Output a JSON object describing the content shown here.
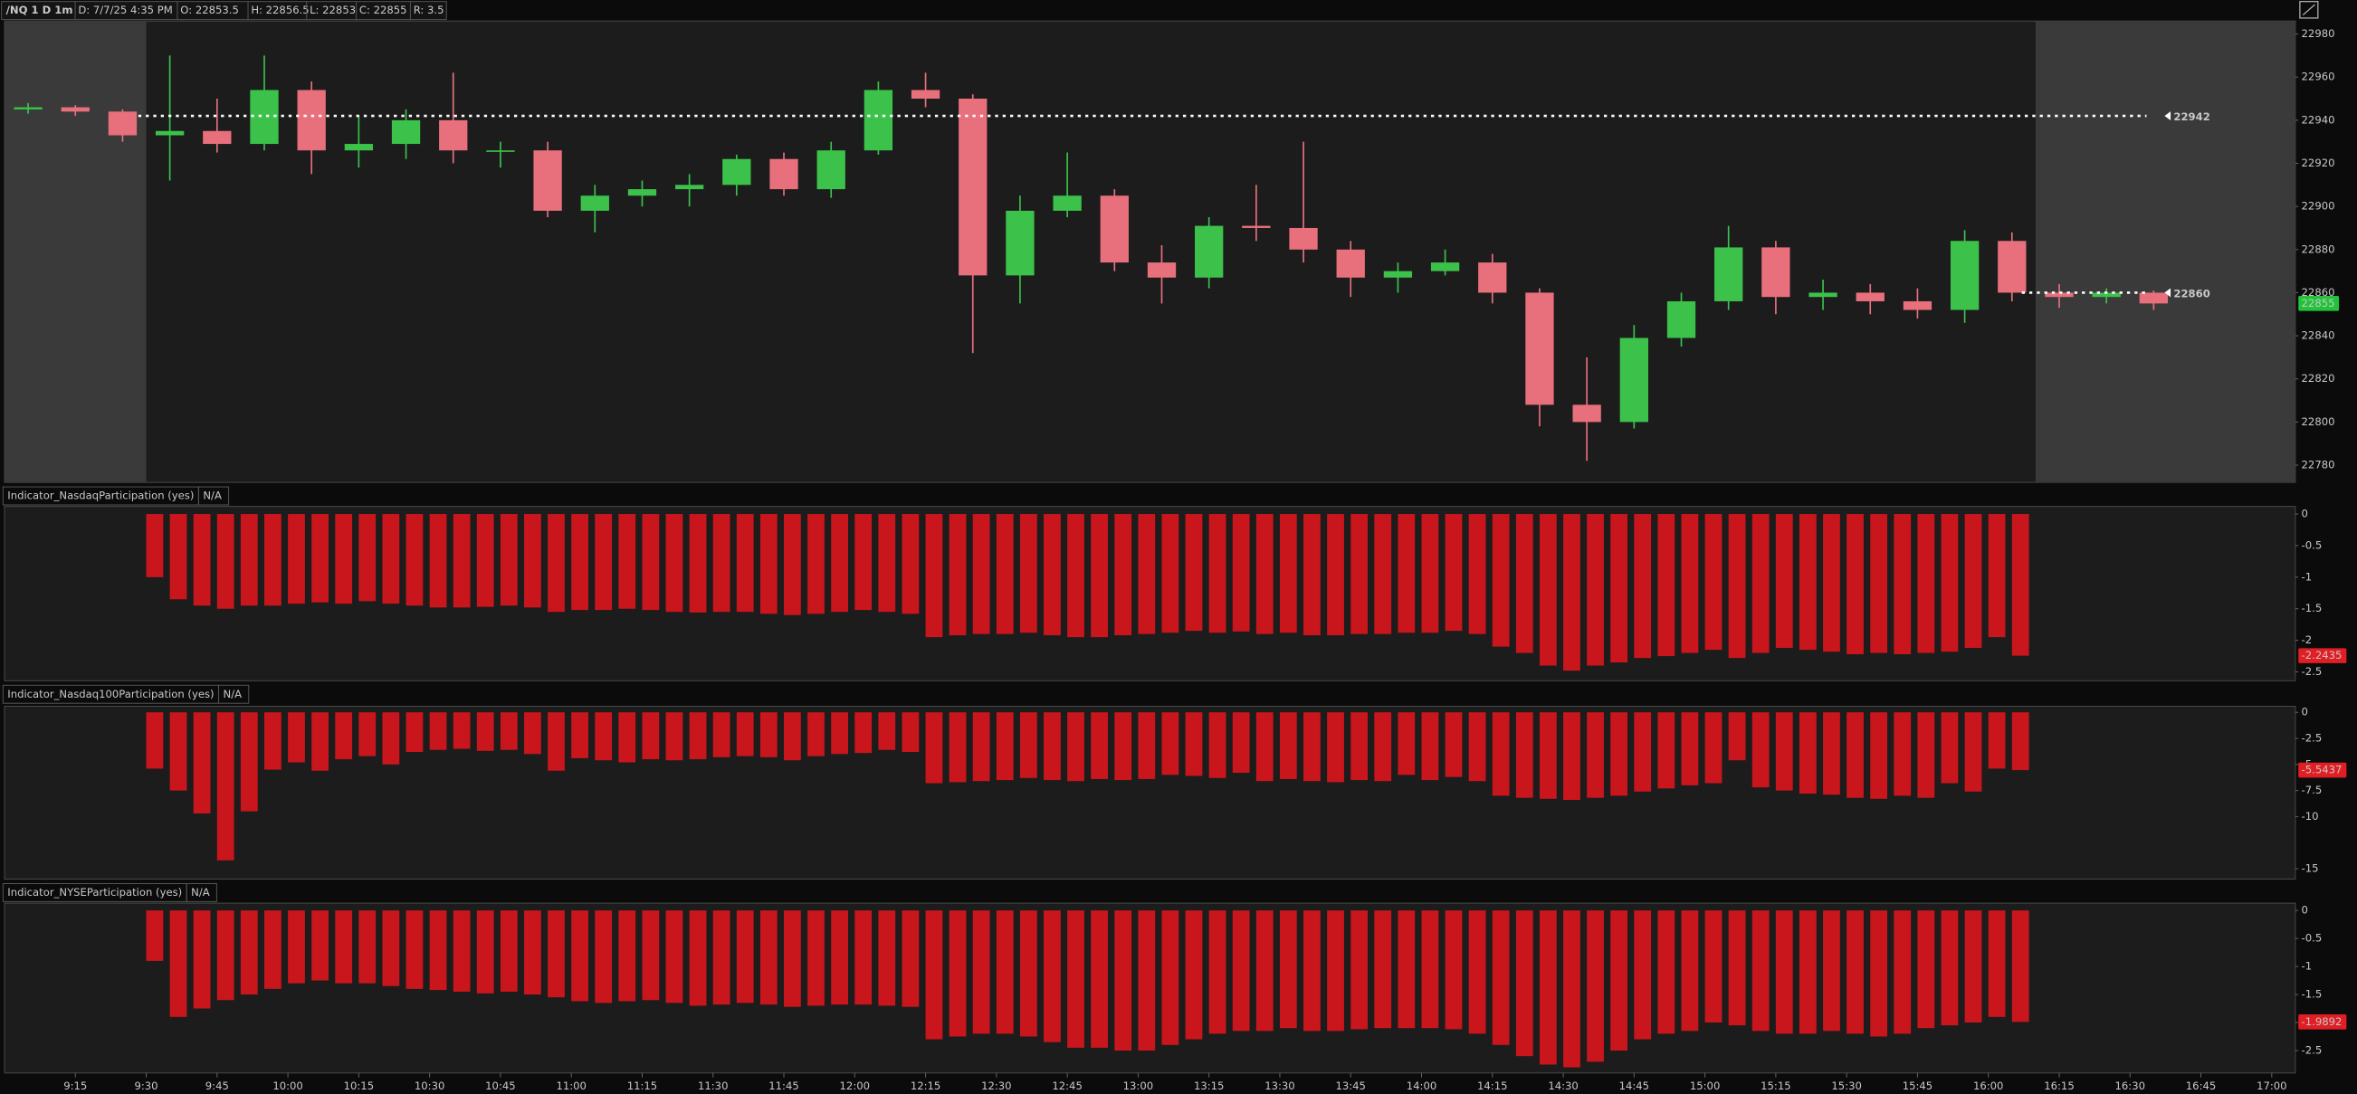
{
  "header": {
    "symbol": "/NQ 1 D 1m",
    "items": [
      "D: 7/7/25 4:35 PM",
      "O: 22853.5",
      "H: 22856.5",
      "L: 22853",
      "C: 22855",
      "R: 3.5"
    ]
  },
  "chart_data": [
    {
      "type": "candlestick",
      "x": [
        "9:00",
        "9:10",
        "9:20",
        "9:30",
        "9:40",
        "9:50",
        "10:00",
        "10:10",
        "10:20",
        "10:30",
        "10:40",
        "10:50",
        "11:00",
        "11:10",
        "11:20",
        "11:30",
        "11:40",
        "11:50",
        "12:00",
        "12:10",
        "12:20",
        "12:30",
        "12:40",
        "12:50",
        "13:00",
        "13:10",
        "13:20",
        "13:30",
        "13:40",
        "13:50",
        "14:00",
        "14:10",
        "14:20",
        "14:30",
        "14:40",
        "14:50",
        "15:00",
        "15:10",
        "15:20",
        "15:30",
        "15:40",
        "15:50",
        "16:00",
        "16:10",
        "16:20",
        "16:30"
      ],
      "open": [
        22945,
        22946,
        22944,
        22933,
        22935,
        22929,
        22954,
        22926,
        22929,
        22940,
        22926,
        22926,
        22898,
        22905,
        22908,
        22910,
        22922,
        22908,
        22926,
        22954,
        22950,
        22868,
        22898,
        22905,
        22874,
        22867,
        22891,
        22890,
        22880,
        22867,
        22870,
        22874,
        22860,
        22808,
        22800,
        22839,
        22856,
        22881,
        22858,
        22860,
        22856,
        22852,
        22884,
        22860,
        22858,
        22860
      ],
      "high": [
        22948,
        22947,
        22945,
        22970,
        22950,
        22970,
        22958,
        22942,
        22945,
        22962,
        22930,
        22930,
        22910,
        22912,
        22915,
        22924,
        22925,
        22930,
        22958,
        22962,
        22952,
        22905,
        22925,
        22908,
        22882,
        22895,
        22910,
        22930,
        22884,
        22874,
        22880,
        22878,
        22862,
        22830,
        22845,
        22860,
        22891,
        22884,
        22866,
        22864,
        22862,
        22889,
        22888,
        22864,
        22862,
        22861
      ],
      "low": [
        22943,
        22942,
        22930,
        22912,
        22925,
        22926,
        22915,
        22918,
        22922,
        22920,
        22918,
        22895,
        22888,
        22900,
        22900,
        22905,
        22905,
        22904,
        22924,
        22946,
        22832,
        22855,
        22895,
        22870,
        22855,
        22862,
        22884,
        22874,
        22858,
        22860,
        22868,
        22855,
        22798,
        22782,
        22797,
        22835,
        22852,
        22850,
        22852,
        22850,
        22848,
        22846,
        22856,
        22853,
        22855,
        22852
      ],
      "close": [
        22946,
        22944,
        22933,
        22935,
        22929,
        22954,
        22926,
        22929,
        22940,
        22926,
        22926,
        22898,
        22905,
        22908,
        22910,
        22922,
        22908,
        22926,
        22954,
        22950,
        22868,
        22898,
        22905,
        22874,
        22867,
        22891,
        22890,
        22880,
        22867,
        22870,
        22874,
        22860,
        22808,
        22800,
        22839,
        22856,
        22881,
        22858,
        22860,
        22856,
        22852,
        22884,
        22860,
        22858,
        22860,
        22855
      ],
      "up_color": "#3cc24a",
      "down_color": "#e8707c",
      "last_color": "#22c33a",
      "xlim": [
        "9:00",
        "17:05"
      ],
      "ylim": [
        22772,
        22986
      ],
      "yticks": [
        22780,
        22800,
        22820,
        22840,
        22860,
        22880,
        22900,
        22920,
        22940,
        22960,
        22980
      ],
      "levels": [
        22942,
        22860
      ],
      "shaded": [
        [
          "9:00",
          "9:30"
        ],
        [
          "16:10",
          "17:05"
        ]
      ]
    },
    {
      "type": "bar",
      "title": "Indicator_NasdaqParticipation (yes)",
      "status": "N/A",
      "color": "#c8161c",
      "x": [
        "9:30",
        "9:35",
        "9:40",
        "9:45",
        "9:50",
        "9:55",
        "10:00",
        "10:05",
        "10:10",
        "10:15",
        "10:20",
        "10:25",
        "10:30",
        "10:35",
        "10:40",
        "10:45",
        "10:50",
        "10:55",
        "11:00",
        "11:05",
        "11:10",
        "11:15",
        "11:20",
        "11:25",
        "11:30",
        "11:35",
        "11:40",
        "11:45",
        "11:50",
        "11:55",
        "12:00",
        "12:05",
        "12:10",
        "12:15",
        "12:20",
        "12:25",
        "12:30",
        "12:35",
        "12:40",
        "12:45",
        "12:50",
        "12:55",
        "13:00",
        "13:05",
        "13:10",
        "13:15",
        "13:20",
        "13:25",
        "13:30",
        "13:35",
        "13:40",
        "13:45",
        "13:50",
        "13:55",
        "14:00",
        "14:05",
        "14:10",
        "14:15",
        "14:20",
        "14:25",
        "14:30",
        "14:35",
        "14:40",
        "14:45",
        "14:50",
        "14:55",
        "15:00",
        "15:05",
        "15:10",
        "15:15",
        "15:20",
        "15:25",
        "15:30",
        "15:35",
        "15:40",
        "15:45",
        "15:50",
        "15:55",
        "16:00",
        "16:05"
      ],
      "values": [
        -1.0,
        -1.35,
        -1.45,
        -1.5,
        -1.45,
        -1.45,
        -1.42,
        -1.4,
        -1.42,
        -1.38,
        -1.42,
        -1.45,
        -1.48,
        -1.48,
        -1.47,
        -1.45,
        -1.48,
        -1.55,
        -1.52,
        -1.52,
        -1.5,
        -1.52,
        -1.55,
        -1.56,
        -1.55,
        -1.55,
        -1.58,
        -1.6,
        -1.58,
        -1.55,
        -1.52,
        -1.55,
        -1.58,
        -1.95,
        -1.92,
        -1.9,
        -1.9,
        -1.88,
        -1.92,
        -1.95,
        -1.95,
        -1.92,
        -1.9,
        -1.88,
        -1.85,
        -1.88,
        -1.86,
        -1.9,
        -1.88,
        -1.92,
        -1.92,
        -1.9,
        -1.9,
        -1.88,
        -1.88,
        -1.85,
        -1.9,
        -2.1,
        -2.2,
        -2.4,
        -2.48,
        -2.4,
        -2.35,
        -2.28,
        -2.25,
        -2.2,
        -2.15,
        -2.28,
        -2.2,
        -2.12,
        -2.15,
        -2.18,
        -2.22,
        -2.2,
        -2.22,
        -2.2,
        -2.18,
        -2.12,
        -1.95,
        -2.2435
      ],
      "xlim": [
        "9:00",
        "17:05"
      ],
      "ylim": [
        -2.64,
        0.12
      ],
      "yticks": [
        0,
        -0.5,
        -1,
        -1.5,
        -2,
        -2.5
      ]
    },
    {
      "type": "bar",
      "title": "Indicator_Nasdaq100Participation (yes)",
      "status": "N/A",
      "color": "#c8161c",
      "x": [
        "9:30",
        "9:35",
        "9:40",
        "9:45",
        "9:50",
        "9:55",
        "10:00",
        "10:05",
        "10:10",
        "10:15",
        "10:20",
        "10:25",
        "10:30",
        "10:35",
        "10:40",
        "10:45",
        "10:50",
        "10:55",
        "11:00",
        "11:05",
        "11:10",
        "11:15",
        "11:20",
        "11:25",
        "11:30",
        "11:35",
        "11:40",
        "11:45",
        "11:50",
        "11:55",
        "12:00",
        "12:05",
        "12:10",
        "12:15",
        "12:20",
        "12:25",
        "12:30",
        "12:35",
        "12:40",
        "12:45",
        "12:50",
        "12:55",
        "13:00",
        "13:05",
        "13:10",
        "13:15",
        "13:20",
        "13:25",
        "13:30",
        "13:35",
        "13:40",
        "13:45",
        "13:50",
        "13:55",
        "14:00",
        "14:05",
        "14:10",
        "14:15",
        "14:20",
        "14:25",
        "14:30",
        "14:35",
        "14:40",
        "14:45",
        "14:50",
        "14:55",
        "15:00",
        "15:05",
        "15:10",
        "15:15",
        "15:20",
        "15:25",
        "15:30",
        "15:35",
        "15:40",
        "15:45",
        "15:50",
        "15:55",
        "16:00",
        "16:05"
      ],
      "values": [
        -5.4,
        -7.5,
        -9.7,
        -14.2,
        -9.5,
        -5.5,
        -4.8,
        -5.6,
        -4.5,
        -4.2,
        -5.0,
        -3.8,
        -3.6,
        -3.5,
        -3.7,
        -3.6,
        -4.0,
        -5.6,
        -4.4,
        -4.6,
        -4.8,
        -4.5,
        -4.6,
        -4.5,
        -4.3,
        -4.2,
        -4.3,
        -4.6,
        -4.2,
        -4.0,
        -3.9,
        -3.6,
        -3.8,
        -6.8,
        -6.7,
        -6.6,
        -6.5,
        -6.3,
        -6.5,
        -6.6,
        -6.4,
        -6.5,
        -6.4,
        -6.0,
        -6.1,
        -6.3,
        -5.8,
        -6.6,
        -6.4,
        -6.6,
        -6.7,
        -6.5,
        -6.6,
        -6.0,
        -6.5,
        -6.2,
        -6.6,
        -8.0,
        -8.2,
        -8.3,
        -8.4,
        -8.2,
        -8.0,
        -7.6,
        -7.3,
        -7.0,
        -6.8,
        -4.6,
        -7.2,
        -7.5,
        -7.8,
        -7.9,
        -8.2,
        -8.3,
        -8.0,
        -8.2,
        -6.8,
        -7.6,
        -5.4,
        -5.5437
      ],
      "xlim": [
        "9:00",
        "17:05"
      ],
      "ylim": [
        -16.0,
        0.58
      ],
      "yticks": [
        0,
        -2.5,
        -5,
        -7.5,
        -10,
        -15
      ]
    },
    {
      "type": "bar",
      "title": "Indicator_NYSEParticipation (yes)",
      "status": "N/A",
      "color": "#c8161c",
      "x": [
        "9:30",
        "9:35",
        "9:40",
        "9:45",
        "9:50",
        "9:55",
        "10:00",
        "10:05",
        "10:10",
        "10:15",
        "10:20",
        "10:25",
        "10:30",
        "10:35",
        "10:40",
        "10:45",
        "10:50",
        "10:55",
        "11:00",
        "11:05",
        "11:10",
        "11:15",
        "11:20",
        "11:25",
        "11:30",
        "11:35",
        "11:40",
        "11:45",
        "11:50",
        "11:55",
        "12:00",
        "12:05",
        "12:10",
        "12:15",
        "12:20",
        "12:25",
        "12:30",
        "12:35",
        "12:40",
        "12:45",
        "12:50",
        "12:55",
        "13:00",
        "13:05",
        "13:10",
        "13:15",
        "13:20",
        "13:25",
        "13:30",
        "13:35",
        "13:40",
        "13:45",
        "13:50",
        "13:55",
        "14:00",
        "14:05",
        "14:10",
        "14:15",
        "14:20",
        "14:25",
        "14:30",
        "14:35",
        "14:40",
        "14:45",
        "14:50",
        "14:55",
        "15:00",
        "15:05",
        "15:10",
        "15:15",
        "15:20",
        "15:25",
        "15:30",
        "15:35",
        "15:40",
        "15:45",
        "15:50",
        "15:55",
        "16:00",
        "16:05"
      ],
      "values": [
        -0.9,
        -1.9,
        -1.75,
        -1.6,
        -1.5,
        -1.4,
        -1.3,
        -1.25,
        -1.3,
        -1.3,
        -1.35,
        -1.4,
        -1.42,
        -1.45,
        -1.48,
        -1.45,
        -1.5,
        -1.55,
        -1.62,
        -1.65,
        -1.62,
        -1.6,
        -1.65,
        -1.7,
        -1.68,
        -1.65,
        -1.68,
        -1.72,
        -1.7,
        -1.68,
        -1.68,
        -1.7,
        -1.72,
        -2.3,
        -2.25,
        -2.2,
        -2.2,
        -2.25,
        -2.35,
        -2.45,
        -2.45,
        -2.5,
        -2.5,
        -2.4,
        -2.3,
        -2.2,
        -2.15,
        -2.15,
        -2.1,
        -2.15,
        -2.15,
        -2.12,
        -2.1,
        -2.1,
        -2.1,
        -2.12,
        -2.2,
        -2.4,
        -2.6,
        -2.75,
        -2.8,
        -2.7,
        -2.5,
        -2.3,
        -2.2,
        -2.15,
        -2.0,
        -2.05,
        -2.15,
        -2.2,
        -2.2,
        -2.15,
        -2.2,
        -2.25,
        -2.2,
        -2.1,
        -2.05,
        -2.0,
        -1.9,
        -1.9892
      ],
      "xlim": [
        "9:00",
        "17:05"
      ],
      "ylim": [
        -2.9,
        0.13
      ],
      "yticks": [
        0,
        -0.5,
        -1,
        -1.5,
        -2,
        -2.5
      ],
      "xticks": [
        "9:15",
        "9:30",
        "9:45",
        "10:00",
        "10:15",
        "10:30",
        "10:45",
        "11:00",
        "11:15",
        "11:30",
        "11:45",
        "12:00",
        "12:15",
        "12:30",
        "12:45",
        "13:00",
        "13:15",
        "13:30",
        "13:45",
        "14:00",
        "14:15",
        "14:30",
        "14:45",
        "15:00",
        "15:15",
        "15:30",
        "15:45",
        "16:00",
        "16:15",
        "16:30",
        "16:45",
        "17:00"
      ]
    }
  ]
}
